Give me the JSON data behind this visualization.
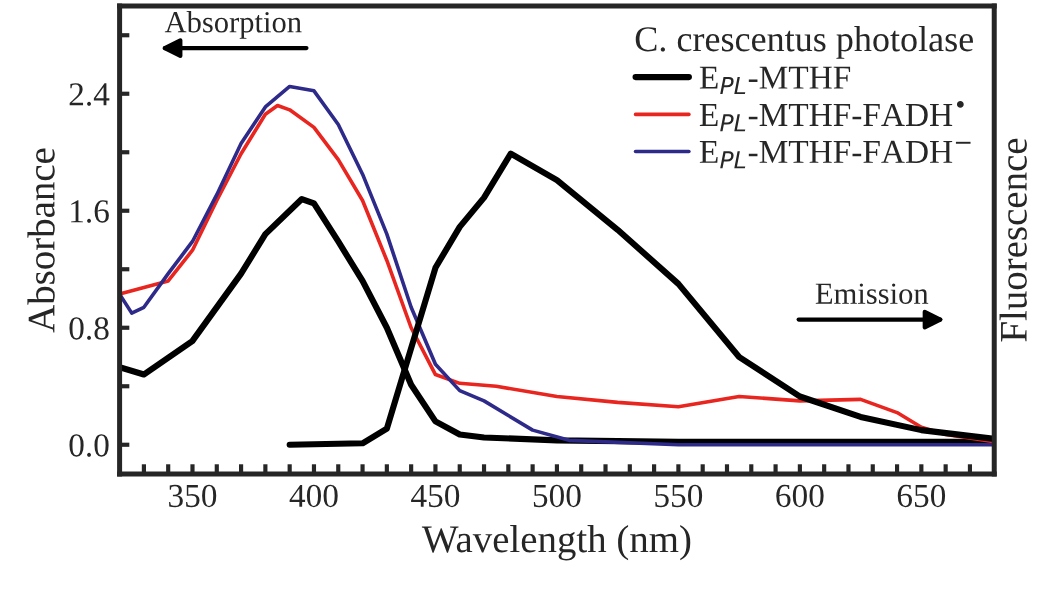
{
  "chart_data": {
    "type": "line",
    "xlabel": "Wavelength (nm)",
    "ylabel": "Absorbance",
    "y2label": "Fluorescence",
    "legend_title": "C. crescentus photolase",
    "annotations": [
      "Absorption",
      "Emission"
    ],
    "xlim": [
      320,
      680
    ],
    "ylim": [
      -0.2,
      3.0
    ],
    "xticks": [
      {
        "value": 330,
        "label": null
      },
      {
        "value": 340,
        "label": null
      },
      350,
      {
        "value": 360,
        "label": null
      },
      {
        "value": 370,
        "label": null
      },
      {
        "value": 380,
        "label": null
      },
      {
        "value": 390,
        "label": null
      },
      400,
      {
        "value": 410,
        "label": null
      },
      {
        "value": 420,
        "label": null
      },
      {
        "value": 430,
        "label": null
      },
      {
        "value": 440,
        "label": null
      },
      450,
      {
        "value": 460,
        "label": null
      },
      {
        "value": 470,
        "label": null
      },
      {
        "value": 480,
        "label": null
      },
      {
        "value": 490,
        "label": null
      },
      500,
      {
        "value": 510,
        "label": null
      },
      {
        "value": 520,
        "label": null
      },
      {
        "value": 530,
        "label": null
      },
      {
        "value": 540,
        "label": null
      },
      550,
      {
        "value": 560,
        "label": null
      },
      {
        "value": 570,
        "label": null
      },
      {
        "value": 580,
        "label": null
      },
      {
        "value": 590,
        "label": null
      },
      600,
      {
        "value": 610,
        "label": null
      },
      {
        "value": 620,
        "label": null
      },
      {
        "value": 630,
        "label": null
      },
      {
        "value": 640,
        "label": null
      },
      650,
      {
        "value": 660,
        "label": null
      },
      {
        "value": 670,
        "label": null
      }
    ],
    "yticks": [
      {
        "value": 0,
        "label": "0.0"
      },
      {
        "value": 0.4,
        "label": null
      },
      0.8,
      {
        "value": 1.2,
        "label": null
      },
      1.6,
      {
        "value": 2.0,
        "label": null
      },
      2.4,
      {
        "value": 2.8,
        "label": null
      }
    ],
    "legend": "top right",
    "grid": false,
    "marker": "none",
    "line_style": "solid",
    "series": [
      {
        "name": "E$_{PL}$-MTHF",
        "color": "#000000",
        "x": [
          320,
          330,
          350,
          370,
          380,
          395,
          400,
          410,
          420,
          430,
          440,
          450,
          460,
          470,
          500,
          550,
          600,
          680
        ],
        "values": [
          0.53,
          0.48,
          0.71,
          1.17,
          1.44,
          1.68,
          1.65,
          1.39,
          1.12,
          0.8,
          0.41,
          0.16,
          0.07,
          0.05,
          0.03,
          0.02,
          0.02,
          0.02
        ]
      },
      {
        "name": "E$_{PL}$-MTHF-FADH$^{•}$",
        "color": "#e8251f",
        "x": [
          320,
          340,
          350,
          360,
          370,
          380,
          385,
          390,
          400,
          410,
          420,
          430,
          440,
          450,
          460,
          475,
          500,
          525,
          550,
          575,
          600,
          625,
          640,
          650,
          660,
          680
        ],
        "values": [
          1.03,
          1.12,
          1.33,
          1.67,
          1.99,
          2.26,
          2.32,
          2.29,
          2.17,
          1.95,
          1.67,
          1.26,
          0.8,
          0.48,
          0.42,
          0.4,
          0.33,
          0.29,
          0.26,
          0.33,
          0.3,
          0.31,
          0.22,
          0.12,
          0.07,
          0.02
        ]
      },
      {
        "name": "E$_{PL}$-MTHF-FADH$^{−}$",
        "color": "#2e2a8a",
        "x": [
          320,
          325,
          330,
          340,
          350,
          360,
          370,
          380,
          390,
          400,
          410,
          420,
          430,
          440,
          450,
          460,
          470,
          480,
          490,
          505,
          550,
          680
        ],
        "values": [
          1.03,
          0.9,
          0.94,
          1.17,
          1.39,
          1.71,
          2.06,
          2.31,
          2.45,
          2.42,
          2.19,
          1.85,
          1.44,
          0.94,
          0.55,
          0.37,
          0.3,
          0.2,
          0.1,
          0.03,
          0.0,
          0.0
        ]
      },
      {
        "color": "#000000",
        "x": [
          390,
          420,
          430,
          440,
          450,
          460,
          470,
          481,
          500,
          525,
          550,
          575,
          600,
          625,
          650,
          680
        ],
        "values": [
          0.0,
          0.01,
          0.11,
          0.66,
          1.21,
          1.49,
          1.69,
          1.99,
          1.81,
          1.47,
          1.1,
          0.6,
          0.33,
          0.19,
          0.1,
          0.04
        ]
      }
    ]
  }
}
